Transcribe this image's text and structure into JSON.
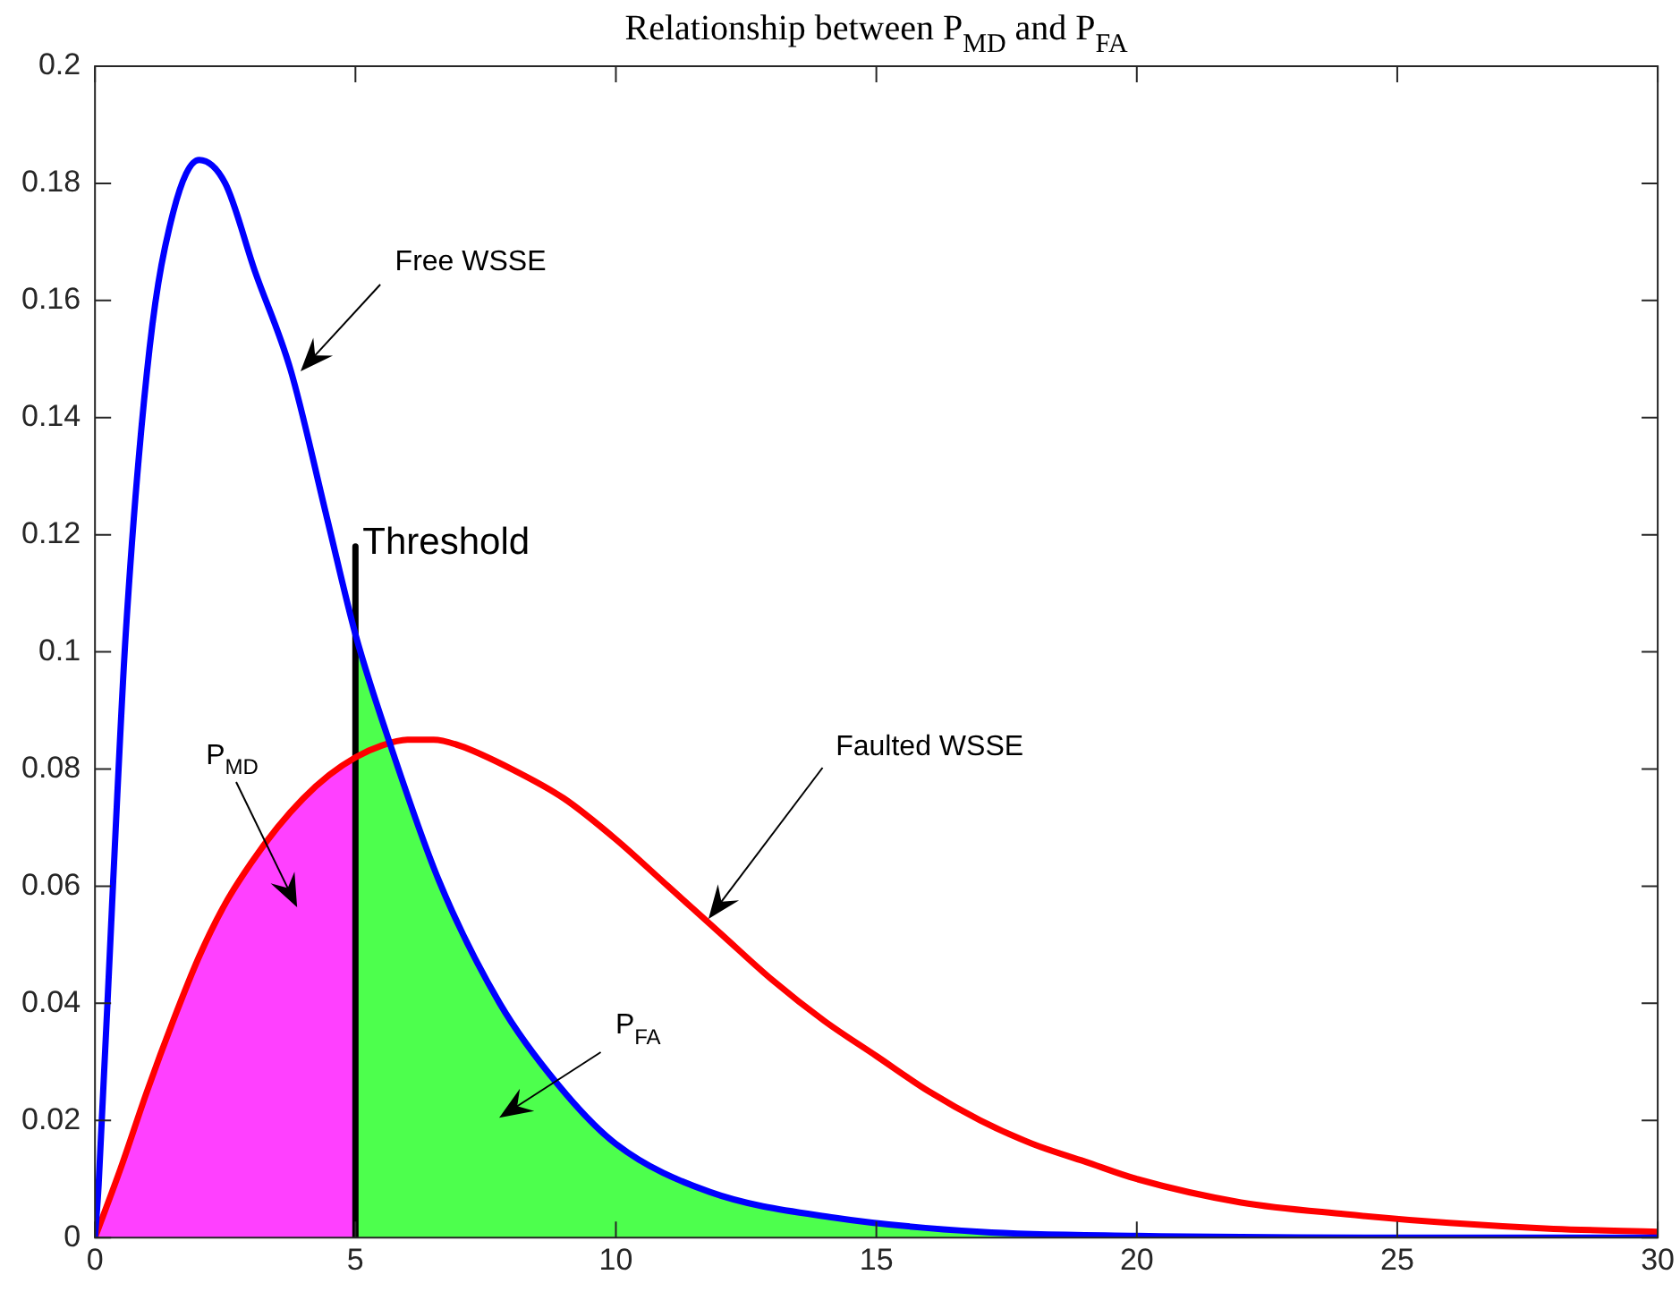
{
  "chart_data": {
    "type": "line",
    "title": "Relationship between P$_{MD}$ and P$_{FA}$",
    "xlim": [
      0,
      30
    ],
    "xticks": [
      0,
      5,
      10,
      15,
      20,
      25,
      30
    ],
    "ylim": [
      0,
      0.2
    ],
    "yticks": [
      0,
      0.02,
      0.04,
      0.06,
      0.08,
      0.1,
      0.12,
      0.14,
      0.16,
      0.18,
      0.2
    ],
    "grid": false,
    "legend": false,
    "marker": "none",
    "line_style": "solid",
    "series": [
      {
        "type": "area",
        "color": "#ff40ff",
        "x": [
          0,
          0.5,
          1,
          1.5,
          2,
          2.5,
          3,
          3.5,
          4,
          4.5,
          5
        ],
        "values": [
          0,
          0.012,
          0.025,
          0.037,
          0.048,
          0.057,
          0.064,
          0.07,
          0.075,
          0.079,
          0.082
        ]
      },
      {
        "type": "area",
        "color": "#4dff4d",
        "x": [
          5,
          5.6,
          6.6,
          7.77,
          8.9,
          10,
          11.8,
          14.2,
          17,
          20,
          25,
          30
        ],
        "values": [
          0.103,
          0.086,
          0.061,
          0.04,
          0.026,
          0.016,
          0.0078,
          0.0034,
          0.001,
          0.0003,
          0,
          0
        ]
      },
      {
        "color": "#0000ff",
        "x": [
          0,
          0.07,
          0.35,
          0.59,
          1.05,
          1.5,
          2,
          2.5,
          3.07,
          3.76,
          4.45,
          5,
          5.6,
          6.6,
          7.77,
          8.9,
          10,
          11.8,
          14.2,
          17,
          20,
          25,
          30
        ],
        "values": [
          0,
          0.009,
          0.061,
          0.103,
          0.152,
          0.175,
          0.184,
          0.18,
          0.165,
          0.148,
          0.123,
          0.103,
          0.086,
          0.061,
          0.04,
          0.026,
          0.016,
          0.0078,
          0.0034,
          0.001,
          0.0003,
          0,
          0
        ]
      },
      {
        "color": "#ff0000",
        "x": [
          0,
          0.5,
          1,
          1.5,
          2,
          2.5,
          3,
          3.5,
          4,
          4.5,
          5,
          5.5,
          6,
          6.5,
          7,
          8,
          9,
          10,
          11,
          12,
          13,
          14,
          15,
          16,
          17,
          18,
          19,
          20,
          22,
          24,
          26,
          28,
          30
        ],
        "values": [
          0,
          0.012,
          0.025,
          0.037,
          0.048,
          0.057,
          0.064,
          0.07,
          0.075,
          0.079,
          0.082,
          0.084,
          0.085,
          0.085,
          0.084,
          0.08,
          0.075,
          0.068,
          0.06,
          0.052,
          0.044,
          0.037,
          0.031,
          0.025,
          0.02,
          0.016,
          0.013,
          0.01,
          0.006,
          0.004,
          0.0025,
          0.0015,
          0.001
        ]
      },
      {
        "color": "#000000",
        "x": [
          5,
          5
        ],
        "values": [
          0,
          0.118
        ]
      }
    ],
    "annotations": [
      {
        "text": "Threshold",
        "x": 5,
        "y": 0.118
      },
      "Free WSSE",
      "Faulted WSSE",
      "P$_{MD}$",
      "P$_{FA}$"
    ]
  }
}
